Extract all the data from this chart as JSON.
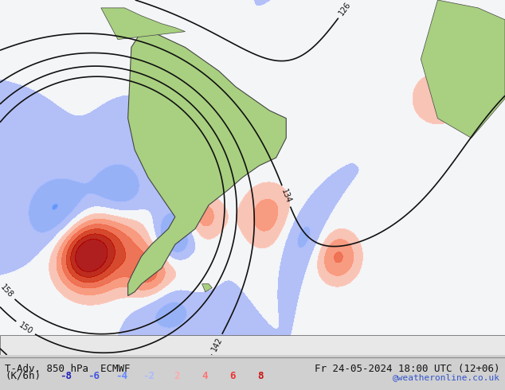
{
  "title_left": "T-Adv. 850 hPa  ECMWF",
  "title_right": "Fr 24-05-2024 18:00 UTC (12+06)",
  "label_unit": "(K/6h)",
  "legend_values": [
    -8,
    -6,
    -4,
    -2,
    2,
    4,
    6,
    8
  ],
  "legend_colors": [
    "#3333cc",
    "#4466ee",
    "#6699ff",
    "#99bbff",
    "#ffaaaa",
    "#ff6666",
    "#ee3333",
    "#cc1111"
  ],
  "cold_colors": [
    "#0000aa",
    "#3355cc",
    "#5588ee",
    "#88aaff",
    "#aabbff"
  ],
  "warm_colors": [
    "#ffaaaa",
    "#ff7777",
    "#ee4444",
    "#cc2222",
    "#aa0000"
  ],
  "colorbar_neg_colors": [
    "#2222bb",
    "#4455dd",
    "#6688ff",
    "#99aaff"
  ],
  "colorbar_pos_colors": [
    "#ffbbbb",
    "#ff8888",
    "#ee5555",
    "#cc2222"
  ],
  "website": "@weatheronline.co.uk",
  "website_color": "#3355cc",
  "background_color": "#e8e8e8",
  "map_bg": "#f0f0f0",
  "land_color": "#a8d080",
  "border_color": "#555555",
  "contour_color": "#111111",
  "figsize": [
    6.34,
    4.9
  ],
  "dpi": 100
}
